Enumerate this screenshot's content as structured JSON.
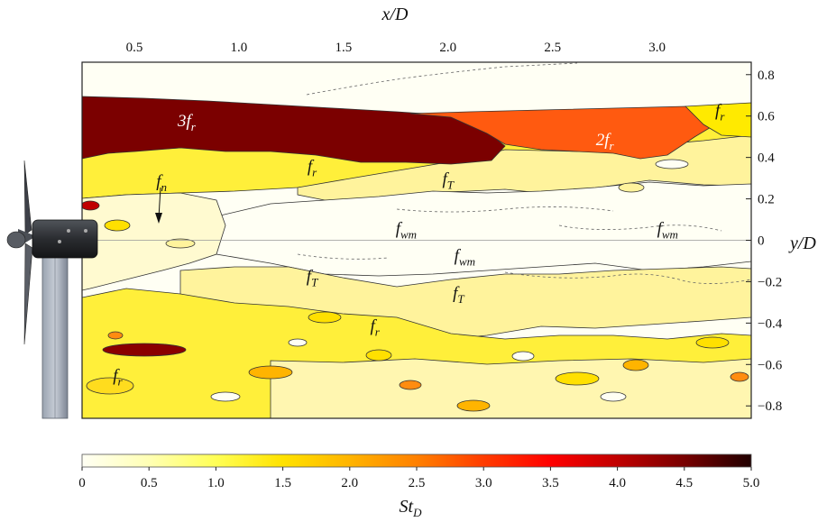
{
  "chart_data": {
    "type": "heatmap",
    "title": "",
    "top_axis": {
      "label_main": "x/D",
      "ticks": [
        "0.5",
        "1.0",
        "1.5",
        "2.0",
        "2.5",
        "3.0"
      ],
      "values": [
        0.5,
        1.0,
        1.5,
        2.0,
        2.5,
        3.0
      ],
      "range": [
        0.25,
        3.45
      ]
    },
    "right_axis": {
      "label_main": "y/D",
      "ticks": [
        "0.8",
        "0.6",
        "0.4",
        "0.2",
        "0",
        "−0.2",
        "−0.4",
        "−0.6",
        "−0.8"
      ],
      "values": [
        0.8,
        0.6,
        0.4,
        0.2,
        0,
        -0.2,
        -0.4,
        -0.6,
        -0.8
      ],
      "range": [
        -0.86,
        0.86
      ]
    },
    "colorbar": {
      "label_main": "St",
      "label_sub": "D",
      "ticks": [
        "0",
        "0.5",
        "1.0",
        "1.5",
        "2.0",
        "2.5",
        "3.0",
        "3.5",
        "4.0",
        "4.5",
        "5.0"
      ],
      "values": [
        0,
        0.5,
        1.0,
        1.5,
        2.0,
        2.5,
        3.0,
        3.5,
        4.0,
        4.5,
        5.0
      ],
      "range": [
        0,
        5.0
      ],
      "colormap": [
        "#fffff4",
        "#ffffb4",
        "#ffff55",
        "#ffe200",
        "#ffb400",
        "#ff8000",
        "#ff3c00",
        "#ff0000",
        "#c00000",
        "#780000",
        "#200000"
      ]
    },
    "annotations": [
      {
        "main": "3f",
        "sub": "r",
        "x": 0.75,
        "y": 0.55
      },
      {
        "main": "2f",
        "sub": "r",
        "x": 2.75,
        "y": 0.46
      },
      {
        "main": "f",
        "sub": "r",
        "x": 3.3,
        "y": 0.6
      },
      {
        "main": "f",
        "sub": "n",
        "x": 0.63,
        "y": 0.26
      },
      {
        "main": "f",
        "sub": "r",
        "x": 1.35,
        "y": 0.33
      },
      {
        "main": "f",
        "sub": "T",
        "x": 2.0,
        "y": 0.27
      },
      {
        "main": "f",
        "sub": "wm",
        "x": 1.8,
        "y": 0.03
      },
      {
        "main": "f",
        "sub": "wm",
        "x": 3.05,
        "y": 0.03
      },
      {
        "main": "f",
        "sub": "wm",
        "x": 2.08,
        "y": -0.1
      },
      {
        "main": "f",
        "sub": "T",
        "x": 1.35,
        "y": -0.2
      },
      {
        "main": "f",
        "sub": "T",
        "x": 2.05,
        "y": -0.28
      },
      {
        "main": "f",
        "sub": "r",
        "x": 1.65,
        "y": -0.44
      },
      {
        "main": "f",
        "sub": "r",
        "x": 0.42,
        "y": -0.68
      }
    ],
    "regions": [
      {
        "label": "3f_r",
        "St": 4.3,
        "x": [
          0.25,
          2.2
        ],
        "y": [
          0.4,
          0.7
        ]
      },
      {
        "label": "2f_r",
        "St": 3.3,
        "x": [
          2.1,
          3.2
        ],
        "y": [
          0.38,
          0.62
        ]
      },
      {
        "label": "f_r",
        "St": 1.3,
        "x": [
          0.25,
          3.45
        ],
        "y": [
          0.16,
          0.66
        ]
      },
      {
        "label": "f_T",
        "St": 0.6,
        "x": [
          1.5,
          3.45
        ],
        "y": [
          0.18,
          0.44
        ]
      },
      {
        "label": "f_wm",
        "St": 0.1,
        "x": [
          0.9,
          3.45
        ],
        "y": [
          -0.28,
          0.2
        ]
      },
      {
        "label": "f_T",
        "St": 0.6,
        "x": [
          1.0,
          3.2
        ],
        "y": [
          -0.42,
          -0.12
        ]
      },
      {
        "label": "f_r",
        "St": 1.3,
        "x": [
          0.25,
          3.45
        ],
        "y": [
          -0.86,
          -0.3
        ]
      }
    ]
  }
}
